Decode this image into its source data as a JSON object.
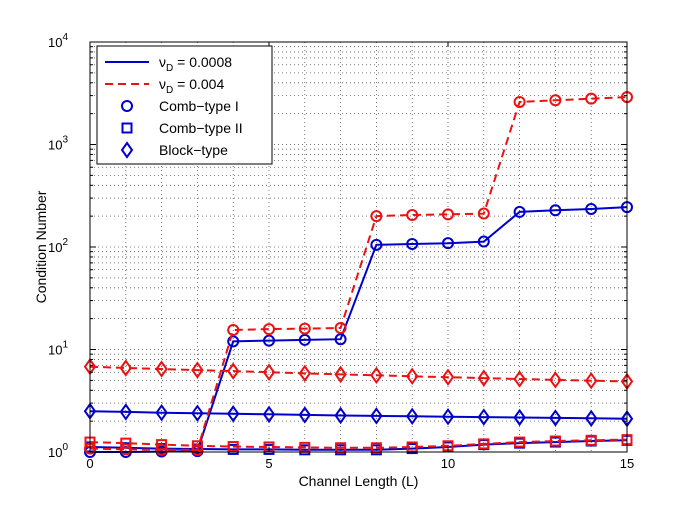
{
  "chart_data": {
    "type": "line",
    "xlabel": "Channel Length (L)",
    "ylabel": "Condition Number",
    "xlim": [
      0,
      15
    ],
    "ylim": [
      1,
      10000
    ],
    "yscale": "log",
    "grid": "dotted (major and minor)",
    "legend_position": "top-left",
    "x": [
      0,
      1,
      2,
      3,
      4,
      5,
      6,
      7,
      8,
      9,
      10,
      11,
      12,
      13,
      14,
      15
    ],
    "x_ticks": [
      "0",
      "5",
      "10",
      "15"
    ],
    "y_ticks": [
      {
        "base": "10",
        "exp": "0"
      },
      {
        "base": "10",
        "exp": "1"
      },
      {
        "base": "10",
        "exp": "2"
      },
      {
        "base": "10",
        "exp": "3"
      },
      {
        "base": "10",
        "exp": "4"
      }
    ],
    "legend": [
      {
        "kind": "line",
        "label_main": "ν",
        "label_sub": "D",
        "label_rest": " = 0.0008",
        "color": "#0000cc",
        "dash": "solid"
      },
      {
        "kind": "line",
        "label_main": "ν",
        "label_sub": "D",
        "label_rest": " = 0.004",
        "color": "#ee1111",
        "dash": "dashed"
      },
      {
        "kind": "marker",
        "marker": "circle",
        "label": "Comb−type I",
        "color": "#0000cc"
      },
      {
        "kind": "marker",
        "marker": "square",
        "label": "Comb−type II",
        "color": "#0000cc"
      },
      {
        "kind": "marker",
        "marker": "diamond",
        "label": "Block−type",
        "color": "#0000cc"
      }
    ],
    "series": [
      {
        "nu_D": "0.0008",
        "pattern": "Comb−type I",
        "marker": "circle",
        "color": "#0000cc",
        "dash": "solid",
        "values": [
          1.0,
          1.0,
          1.01,
          1.02,
          12.0,
          12.2,
          12.4,
          12.6,
          105,
          107,
          109,
          113,
          220,
          228,
          235,
          245
        ]
      },
      {
        "nu_D": "0.004",
        "pattern": "Comb−type I",
        "marker": "circle",
        "color": "#ee1111",
        "dash": "dashed",
        "values": [
          1.08,
          1.06,
          1.05,
          1.05,
          15.5,
          15.8,
          16.0,
          16.2,
          200,
          205,
          208,
          212,
          2600,
          2700,
          2800,
          2900
        ]
      },
      {
        "nu_D": "0.0008",
        "pattern": "Comb−type II",
        "marker": "square",
        "color": "#0000cc",
        "dash": "solid",
        "values": [
          1.12,
          1.1,
          1.08,
          1.07,
          1.06,
          1.06,
          1.05,
          1.05,
          1.05,
          1.08,
          1.12,
          1.18,
          1.22,
          1.25,
          1.28,
          1.3
        ]
      },
      {
        "nu_D": "0.004",
        "pattern": "Comb−type II",
        "marker": "square",
        "color": "#ee1111",
        "dash": "dashed",
        "values": [
          1.25,
          1.22,
          1.18,
          1.15,
          1.13,
          1.12,
          1.11,
          1.1,
          1.1,
          1.12,
          1.15,
          1.2,
          1.25,
          1.28,
          1.3,
          1.32
        ]
      },
      {
        "nu_D": "0.0008",
        "pattern": "Block−type",
        "marker": "diamond",
        "color": "#0000cc",
        "dash": "solid",
        "values": [
          2.5,
          2.46,
          2.42,
          2.39,
          2.36,
          2.33,
          2.3,
          2.27,
          2.25,
          2.23,
          2.21,
          2.19,
          2.17,
          2.15,
          2.13,
          2.11
        ]
      },
      {
        "nu_D": "0.004",
        "pattern": "Block−type",
        "marker": "diamond",
        "color": "#ee1111",
        "dash": "dashed",
        "values": [
          6.8,
          6.6,
          6.45,
          6.3,
          6.15,
          6.0,
          5.85,
          5.72,
          5.6,
          5.48,
          5.37,
          5.26,
          5.15,
          5.05,
          4.96,
          4.88
        ]
      }
    ]
  }
}
